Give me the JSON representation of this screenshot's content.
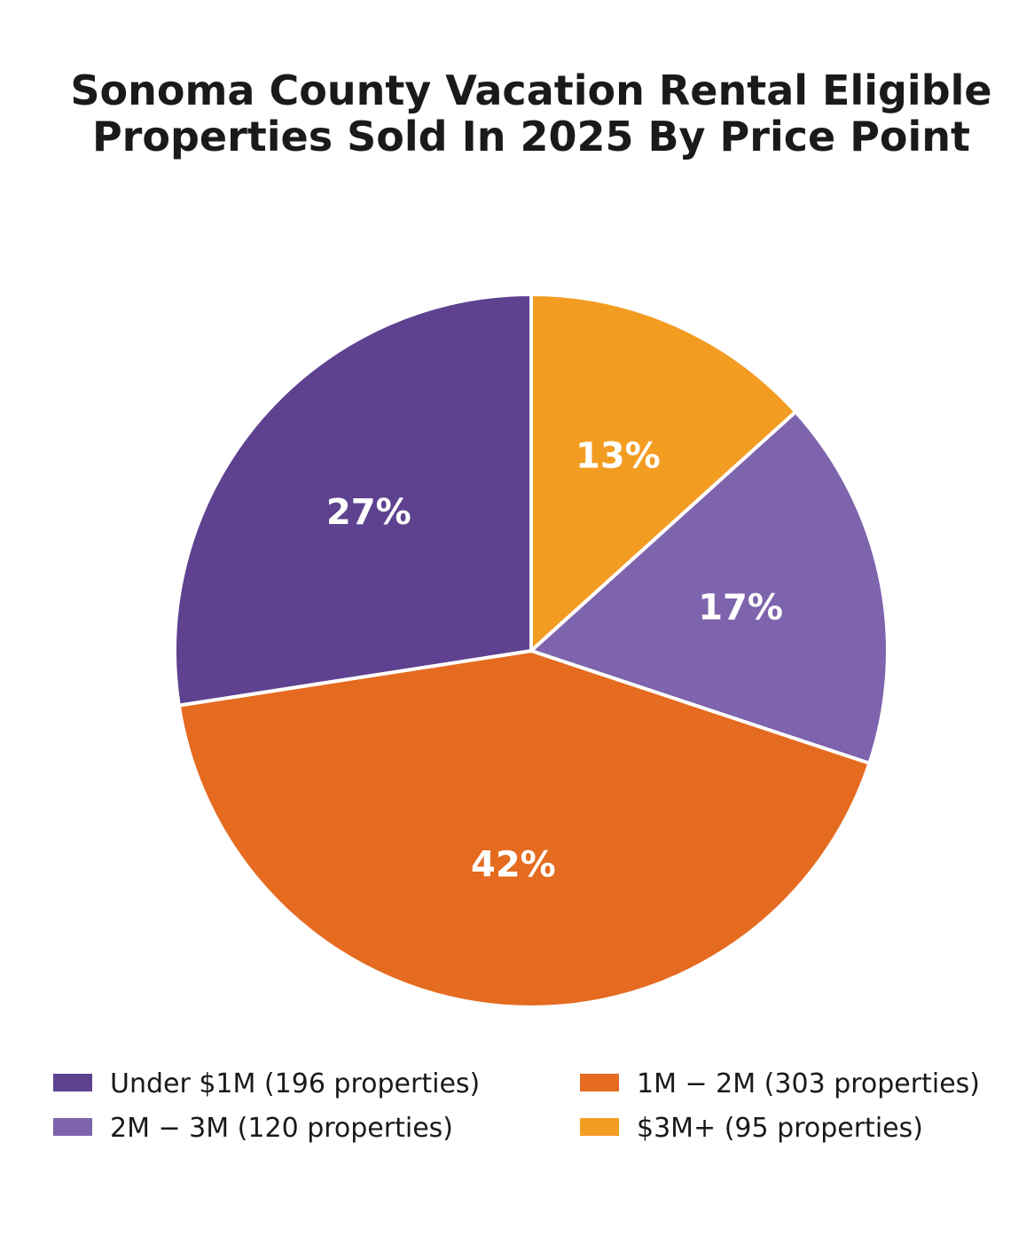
{
  "chart_data": {
    "type": "pie",
    "title_lines": [
      "Sonoma County Vacation Rental Eligible",
      "Properties Sold In 2025 By Price Point"
    ],
    "start_angle_deg": 90,
    "direction": "clockwise",
    "legend_position": "bottom",
    "legend_columns": 2,
    "slices": [
      {
        "label": "$3M+",
        "count": 95,
        "pct_label": "13%",
        "color": "#F39C22",
        "legend_label": "$3M+  (95 properties)"
      },
      {
        "label": "2M − 3M",
        "count": 120,
        "pct_label": "17%",
        "color": "#7E63AD",
        "legend_label": "2M − 3M  (120 properties)"
      },
      {
        "label": "1M − 2M",
        "count": 303,
        "pct_label": "42%",
        "color": "#E56B20",
        "legend_label": "1M − 2M  (303 properties)"
      },
      {
        "label": "Under $1M",
        "count": 196,
        "pct_label": "27%",
        "color": "#5E4290",
        "legend_label": "Under $1M  (196 properties)"
      }
    ],
    "legend_order": [
      3,
      1,
      2,
      0
    ]
  }
}
